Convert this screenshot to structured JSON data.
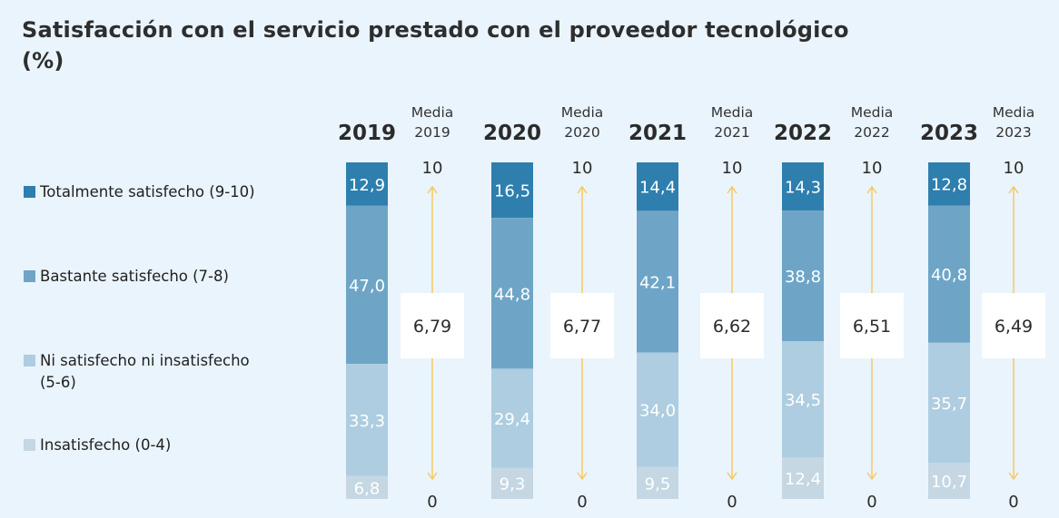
{
  "title": "Satisfacción con el servicio prestado con el proveedor tecnológico (%)",
  "title_line1": "Satisfacción con el servicio prestado con el proveedor tecnológico",
  "title_line2": "(%)",
  "legend": [
    {
      "label": "Totalmente satisfecho (9-10)",
      "color": "#2e7fae"
    },
    {
      "label": "Bastante satisfecho (7-8)",
      "color": "#6ea5c7"
    },
    {
      "label_line1": "Ni satisfecho ni insatisfecho",
      "label_line2": "(5-6)",
      "label": "Ni satisfecho ni insatisfecho (5-6)",
      "color": "#aecde0"
    },
    {
      "label": "Insatisfecho (0-4)",
      "color": "#c4d7e3"
    }
  ],
  "chart_data": {
    "type": "bar",
    "stacked": true,
    "title": "Satisfacción con el servicio prestado con el proveedor tecnológico (%)",
    "categories": [
      "2019",
      "2020",
      "2021",
      "2022",
      "2023"
    ],
    "series": [
      {
        "name": "Totalmente satisfecho (9-10)",
        "color": "#2e7fae",
        "values": [
          12.9,
          16.5,
          14.4,
          14.3,
          12.8
        ],
        "labels": [
          "12,9",
          "16,5",
          "14,4",
          "14,3",
          "12,8"
        ]
      },
      {
        "name": "Bastante satisfecho (7-8)",
        "color": "#6ea5c7",
        "values": [
          47.0,
          44.8,
          42.1,
          38.8,
          40.8
        ],
        "labels": [
          "47,0",
          "44,8",
          "42,1",
          "38,8",
          "40,8"
        ]
      },
      {
        "name": "Ni satisfecho ni insatisfecho (5-6)",
        "color": "#aecde0",
        "values": [
          33.3,
          29.4,
          34.0,
          34.5,
          35.7
        ],
        "labels": [
          "33,3",
          "29,4",
          "34,0",
          "34,5",
          "35,7"
        ]
      },
      {
        "name": "Insatisfecho (0-4)",
        "color": "#c4d7e3",
        "values": [
          6.8,
          9.3,
          9.5,
          12.4,
          10.7
        ],
        "labels": [
          "6,8",
          "9,3",
          "9,5",
          "12,4",
          "10,7"
        ]
      }
    ],
    "media": {
      "header_line1": "Media",
      "labels": [
        "2019",
        "2020",
        "2021",
        "2022",
        "2023"
      ],
      "values": [
        6.79,
        6.77,
        6.62,
        6.51,
        6.49
      ],
      "value_labels": [
        "6,79",
        "6,77",
        "6,62",
        "6,51",
        "6,49"
      ],
      "scale_max_label": "10",
      "scale_min_label": "0",
      "range": [
        0,
        10
      ],
      "arrow_color": "#f7c75a"
    },
    "xlabel": "",
    "ylabel": "",
    "ylim": [
      0,
      100
    ],
    "grid": false,
    "legend_position": "left"
  }
}
